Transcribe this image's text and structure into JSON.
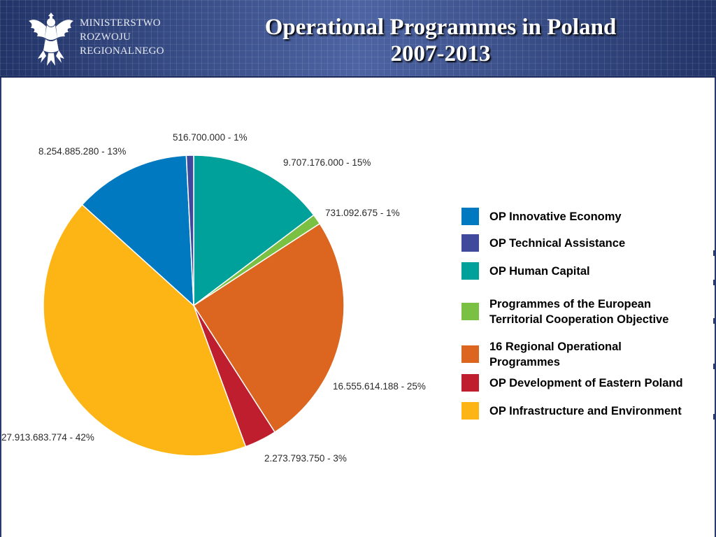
{
  "header": {
    "ministry_lines": [
      "MINISTERSTWO",
      "ROZWOJU",
      "REGIONALNEGO"
    ],
    "title_line1": "Operational Programmes in Poland",
    "title_line2": "2007-2013",
    "logo_icon": "white-eagle-icon"
  },
  "chart_data": {
    "type": "pie",
    "title": "Operational Programmes in Poland 2007-2013",
    "start": "top",
    "direction": "clockwise",
    "slices": [
      {
        "name": "OP Human Capital",
        "value": 9707176000,
        "percent": 15,
        "label": "9.707.176.000 - 15%",
        "color": "#00a19a"
      },
      {
        "name": "Programmes of the European Territorial Cooperation Objective",
        "value": 731092675,
        "percent": 1,
        "label": "731.092.675 -   1%",
        "color": "#7ac143"
      },
      {
        "name": "16 Regional Operational Programmes",
        "value": 16555614188,
        "percent": 25,
        "label": "16.555.614.188 - 25%",
        "color": "#dc661f"
      },
      {
        "name": "OP Development of Eastern Poland",
        "value": 2273793750,
        "percent": 3,
        "label": "2.273.793.750 -   3%",
        "color": "#be1e2d"
      },
      {
        "name": "OP Infrastructure and Environment",
        "value": 27913683774,
        "percent": 42,
        "label": "27.913.683.774 - 42%",
        "color": "#fdb515"
      },
      {
        "name": "OP Innovative Economy",
        "value": 8254885280,
        "percent": 13,
        "label": "8.254.885.280 - 13%",
        "color": "#0079c1"
      },
      {
        "name": "OP Technical Assistance",
        "value": 516700000,
        "percent": 1,
        "label": "516.700.000 -   1%",
        "color": "#3f4a9c"
      }
    ],
    "legend": {
      "placement": "right",
      "items": [
        {
          "label": "OP Innovative Economy",
          "color": "#0079c1"
        },
        {
          "label": "OP Technical Assistance",
          "color": "#3f4a9c"
        },
        {
          "label": "OP Human Capital",
          "color": "#00a19a"
        },
        {
          "label": "Programmes of the European Territorial Cooperation Objective",
          "color": "#7ac143"
        },
        {
          "label": "16 Regional Operational Programmes",
          "color": "#dc661f"
        },
        {
          "label": "OP Development of Eastern Poland",
          "color": "#be1e2d"
        },
        {
          "label": "OP Infrastructure and Environment",
          "color": "#fdb515"
        }
      ]
    }
  }
}
